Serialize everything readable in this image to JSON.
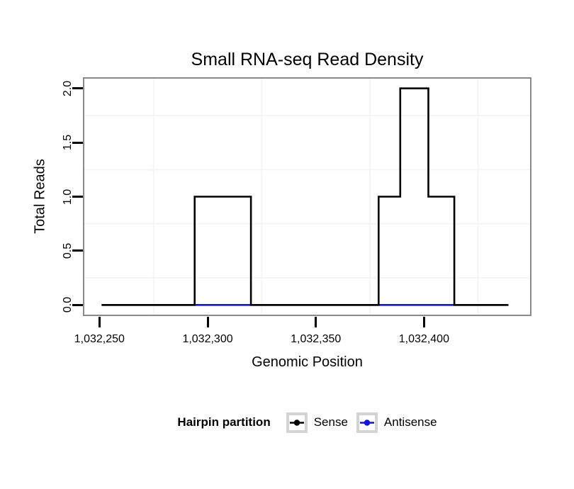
{
  "chart_data": {
    "type": "line",
    "subtype": "step",
    "title": "Small RNA-seq Read Density",
    "xlabel": "Genomic Position",
    "ylabel": "Total Reads",
    "xlim": [
      1032243,
      1032449
    ],
    "ylim": [
      -0.09,
      2.09
    ],
    "grid": "minor-only",
    "x_ticks": [
      {
        "value": 1032250,
        "label": "1,032,250"
      },
      {
        "value": 1032300,
        "label": "1,032,300"
      },
      {
        "value": 1032350,
        "label": "1,032,350"
      },
      {
        "value": 1032400,
        "label": "1,032,400"
      }
    ],
    "y_ticks": [
      {
        "value": 0.0,
        "label": "0.0"
      },
      {
        "value": 0.5,
        "label": "0.5"
      },
      {
        "value": 1.0,
        "label": "1.0"
      },
      {
        "value": 1.5,
        "label": "1.5"
      },
      {
        "value": 2.0,
        "label": "2.0"
      }
    ],
    "x_gridlines": [
      1032275,
      1032325,
      1032375,
      1032425
    ],
    "y_gridlines": [
      0.25,
      0.75,
      1.25,
      1.75
    ],
    "colors": {
      "grid": "#f5f5f5",
      "panel_border": "#8a8a8a",
      "sense": "#000000",
      "antisense": "#1010e8"
    },
    "series": [
      {
        "name": "Antisense",
        "color": "#1010e8",
        "points": [
          [
            1032251,
            0
          ],
          [
            1032439,
            0
          ]
        ]
      },
      {
        "name": "Sense",
        "color": "#000000",
        "points": [
          [
            1032251,
            0
          ],
          [
            1032294,
            0
          ],
          [
            1032294,
            1
          ],
          [
            1032320,
            1
          ],
          [
            1032320,
            0
          ],
          [
            1032379,
            0
          ],
          [
            1032379,
            1
          ],
          [
            1032389,
            1
          ],
          [
            1032389,
            2
          ],
          [
            1032402,
            2
          ],
          [
            1032402,
            1
          ],
          [
            1032414,
            1
          ],
          [
            1032414,
            0
          ],
          [
            1032439,
            0
          ]
        ]
      }
    ],
    "legend": {
      "title": "Hairpin partition",
      "position": "bottom",
      "entries": [
        {
          "label": "Sense",
          "color": "#000000"
        },
        {
          "label": "Antisense",
          "color": "#1010e8"
        }
      ]
    }
  }
}
